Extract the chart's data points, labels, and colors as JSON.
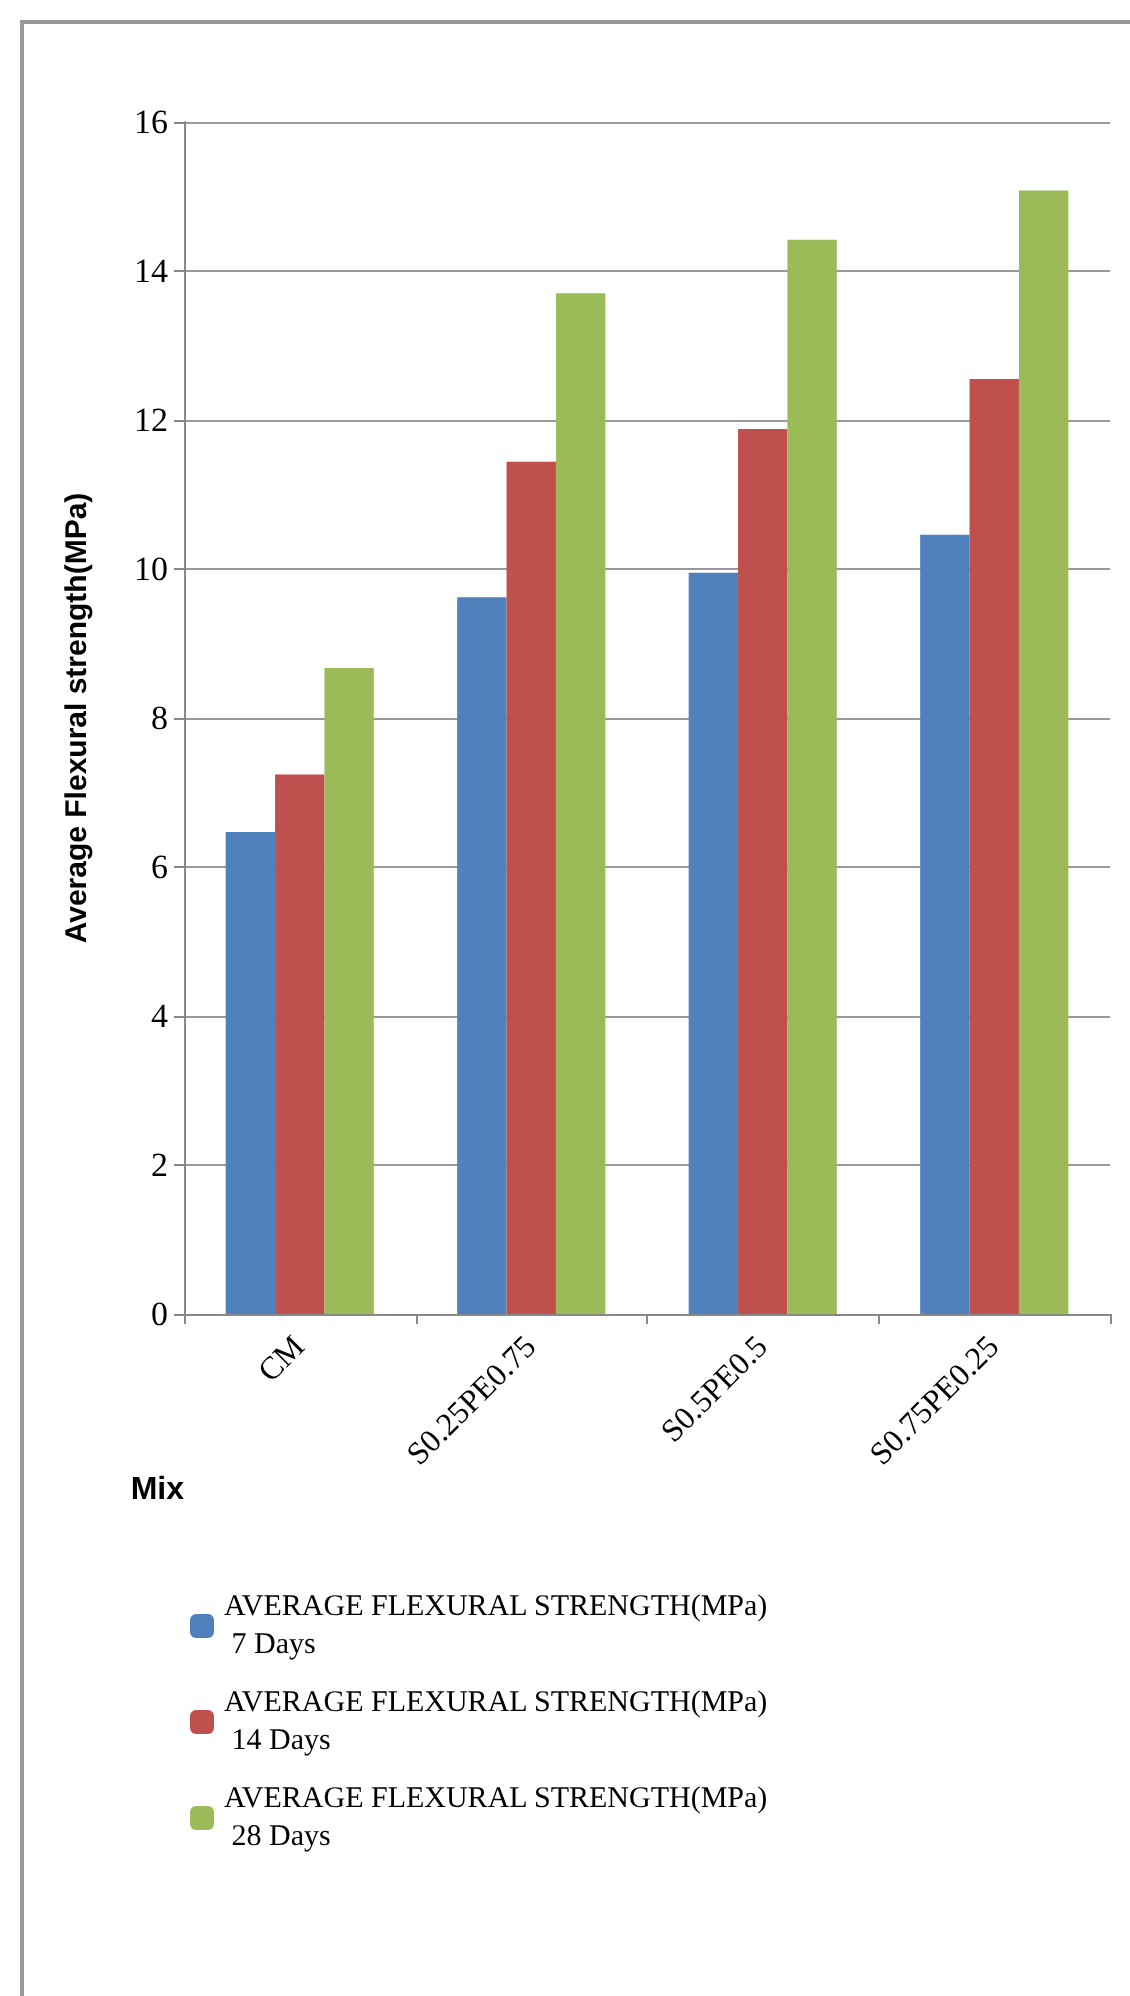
{
  "chart_data": {
    "type": "bar",
    "xlabel": "Mix",
    "ylabel": "Average Flexural strength(MPa)",
    "categories": [
      "CM",
      "S0.25PE0.75",
      "S0.5PE0.5",
      "S0.75PE0.25"
    ],
    "series": [
      {
        "name": "AVERAGE FLEXURAL STRENGTH(MPa) 7 Days",
        "color": "#4f81bd",
        "values": [
          6.47,
          9.62,
          9.95,
          10.46
        ]
      },
      {
        "name": "AVERAGE FLEXURAL STRENGTH(MPa) 14 Days",
        "color": "#c0504d",
        "values": [
          7.24,
          11.44,
          11.88,
          12.55
        ]
      },
      {
        "name": "AVERAGE FLEXURAL STRENGTH(MPa) 28 Days",
        "color": "#9bbb59",
        "values": [
          8.67,
          13.7,
          14.42,
          15.08
        ]
      }
    ],
    "ylim": [
      0,
      16
    ],
    "yticks": [
      0,
      2,
      4,
      6,
      8,
      10,
      12,
      14,
      16
    ],
    "grid": "y",
    "legend": "bottom"
  }
}
